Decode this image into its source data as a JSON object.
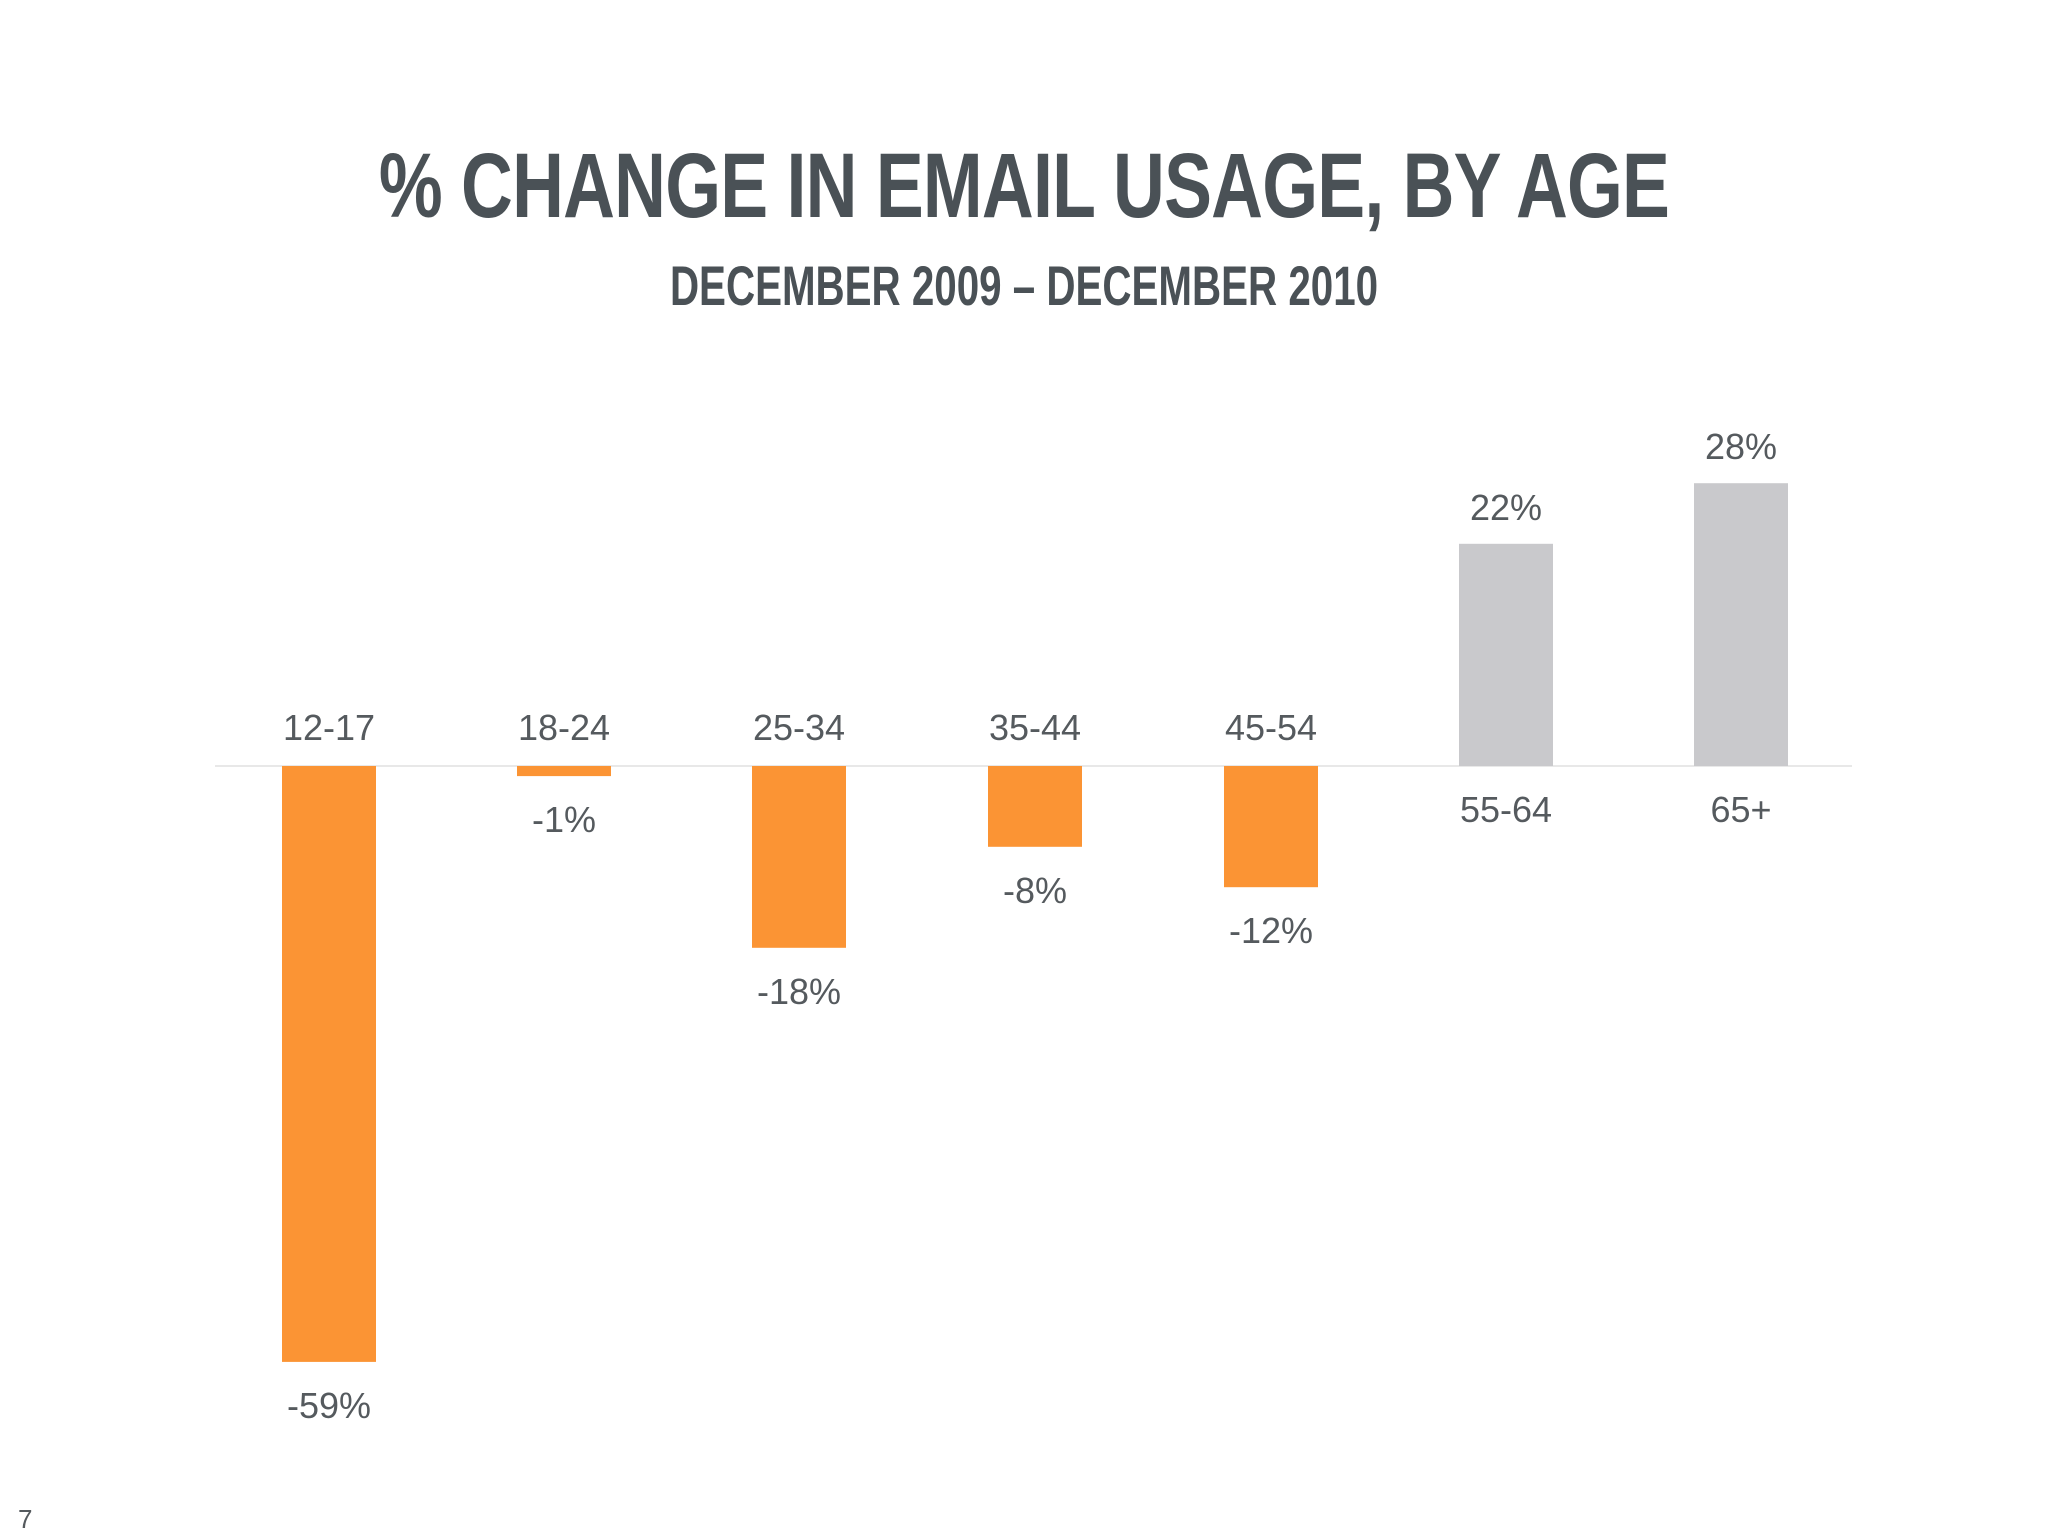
{
  "slide": {
    "title": "% CHANGE IN EMAIL USAGE, BY AGE",
    "subtitle": "DECEMBER 2009 – DECEMBER 2010",
    "page_number": "7"
  },
  "colors": {
    "negative": "#fb9434",
    "positive": "#c9c9cc",
    "baseline": "#e8e8e8",
    "text": "#555a5e"
  },
  "chart_data": {
    "type": "bar",
    "title": "% CHANGE IN EMAIL USAGE, BY AGE",
    "subtitle": "DECEMBER 2009 – DECEMBER 2010",
    "categories": [
      "12-17",
      "18-24",
      "25-34",
      "35-44",
      "45-54",
      "55-64",
      "65+"
    ],
    "values": [
      -59,
      -1,
      -18,
      -8,
      -12,
      22,
      28
    ],
    "value_labels": [
      "-59%",
      "-1%",
      "-18%",
      "-8%",
      "-12%",
      "22%",
      "28%"
    ],
    "ylim": [
      -59,
      28
    ],
    "grid": false,
    "legend": "none"
  }
}
